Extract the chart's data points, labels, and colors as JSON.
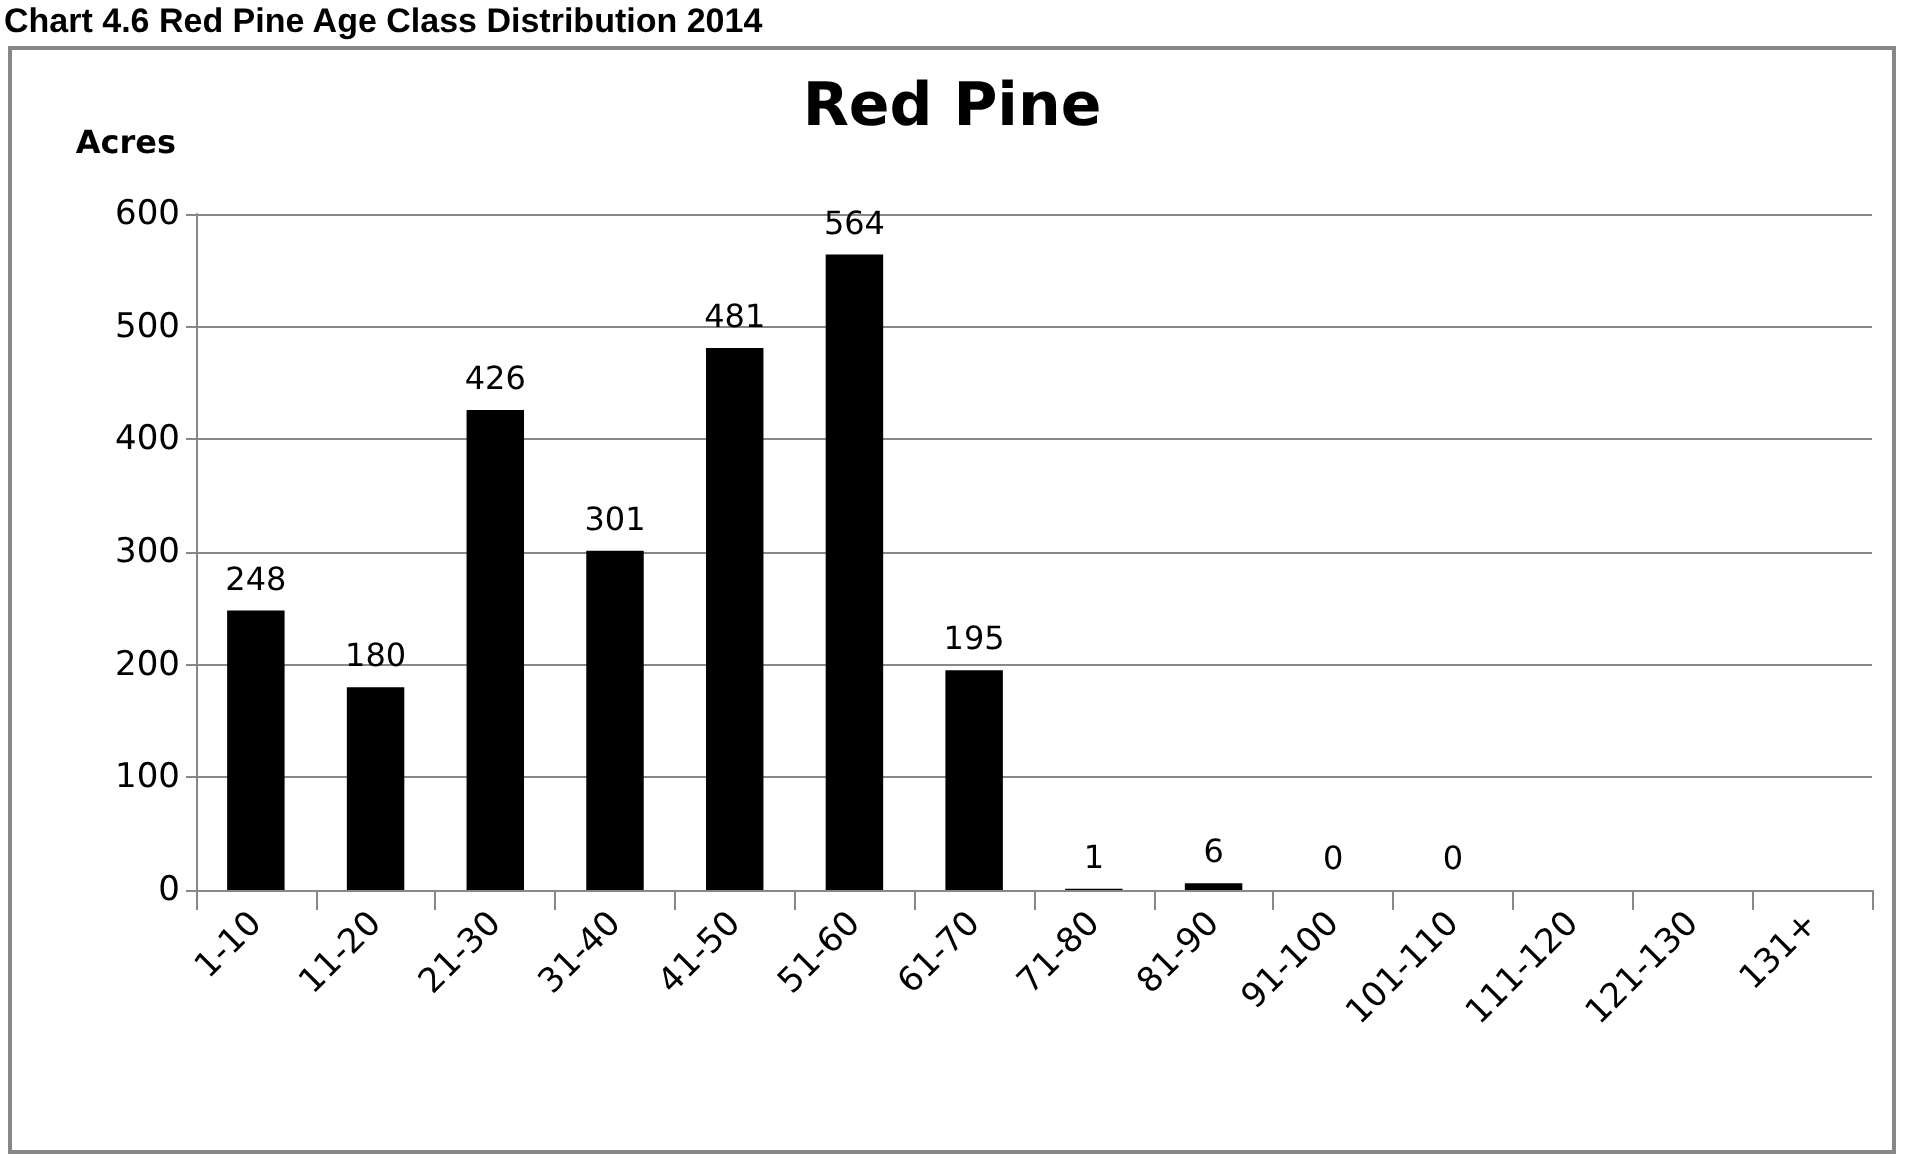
{
  "chart_data": {
    "type": "bar",
    "title": "Red Pine",
    "ylabel": "Acres",
    "annotations": [
      "Chart 4.6 Red Pine Age Class Distribution 2014"
    ],
    "categories": [
      "1-10",
      "11-20",
      "21-30",
      "31-40",
      "41-50",
      "51-60",
      "61-70",
      "71-80",
      "81-90",
      "91-100",
      "101-110",
      "111-120",
      "121-130",
      "131+"
    ],
    "values": [
      248,
      180,
      426,
      301,
      481,
      564,
      195,
      1,
      6,
      0,
      0,
      null,
      null,
      null
    ],
    "value_labels": [
      "248",
      "180",
      "426",
      "301",
      "481",
      "564",
      "195",
      "1",
      "6",
      "0",
      "0",
      null,
      null,
      null
    ],
    "color": "#000000",
    "ylim": [
      0,
      600
    ],
    "yticks": [
      0,
      100,
      200,
      300,
      400,
      500,
      600
    ],
    "grid": "y"
  }
}
